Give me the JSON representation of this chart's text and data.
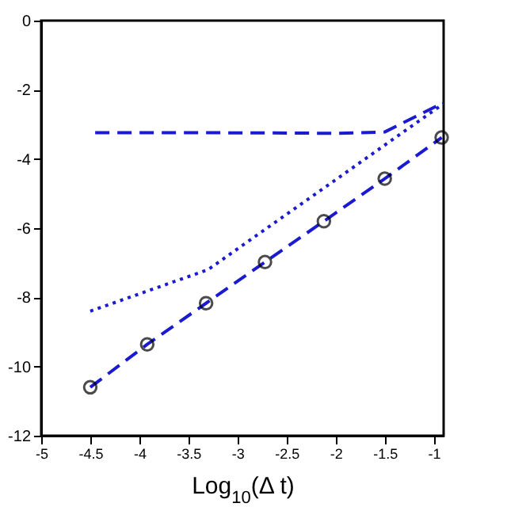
{
  "chart_data": {
    "type": "line",
    "xlabel": "Log$_{10}$(Δ t)",
    "xlim": [
      -5,
      -0.9
    ],
    "xticks": [
      -5,
      -4.5,
      -4,
      -3.5,
      -3,
      -2.5,
      -2,
      -1.5,
      -1
    ],
    "ylim": [
      -12,
      0
    ],
    "yticks": [
      -12,
      -10,
      -8,
      -6,
      -4,
      -2,
      0
    ],
    "grid": false,
    "series": [
      {
        "color": "#1a1ad0",
        "line_style": "dashed",
        "marker": "none",
        "x": [
          -4.45,
          -3.5,
          -2.5,
          -2,
          -1.5,
          -0.9
        ],
        "values": [
          -3.24,
          -3.24,
          -3.25,
          -3.26,
          -3.22,
          -2.37
        ]
      },
      {
        "color": "#1a1ad0",
        "line_style": "dotted",
        "marker": "none",
        "x": [
          -4.5,
          -3.3,
          -0.9
        ],
        "values": [
          -8.4,
          -7.2,
          -2.4
        ]
      },
      {
        "color": "#1a1ad0",
        "line_style": "dashed",
        "marker": "circle",
        "x": [
          -4.5,
          -3.92,
          -3.32,
          -2.72,
          -2.12,
          -1.5,
          -0.92
        ],
        "values": [
          -10.6,
          -9.36,
          -8.17,
          -6.98,
          -5.8,
          -4.57,
          -3.38
        ]
      }
    ]
  }
}
